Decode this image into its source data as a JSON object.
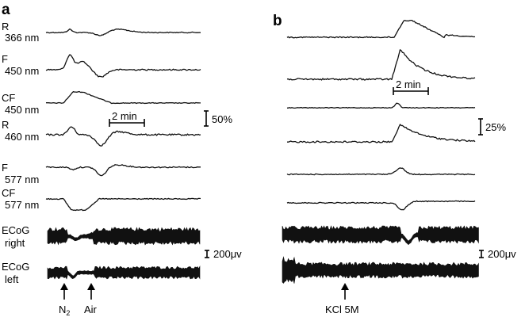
{
  "panel_a": {
    "letter": "a",
    "traces": [
      {
        "line1": "R",
        "line2": "366 nm"
      },
      {
        "line1": "F",
        "line2": "450 nm"
      },
      {
        "line1": "CF",
        "line2": "450 nm"
      },
      {
        "line1": "R",
        "line2": "460 nm"
      },
      {
        "line1": "F",
        "line2": "577 nm"
      },
      {
        "line1": "CF",
        "line2": "577 nm"
      },
      {
        "line1": "ECoG",
        "line2": "right"
      },
      {
        "line1": "ECoG",
        "line2": "left"
      }
    ],
    "time_scale": "2 min",
    "amp_scale": "50%",
    "ecog_scale": "200μv",
    "stimuli": [
      {
        "base": "N",
        "sub": "2"
      },
      {
        "base": "Air",
        "sub": ""
      }
    ]
  },
  "panel_b": {
    "letter": "b",
    "time_scale": "2 min",
    "amp_scale": "25%",
    "ecog_scale": "200μv",
    "stimulus": "KCl 5M"
  }
}
